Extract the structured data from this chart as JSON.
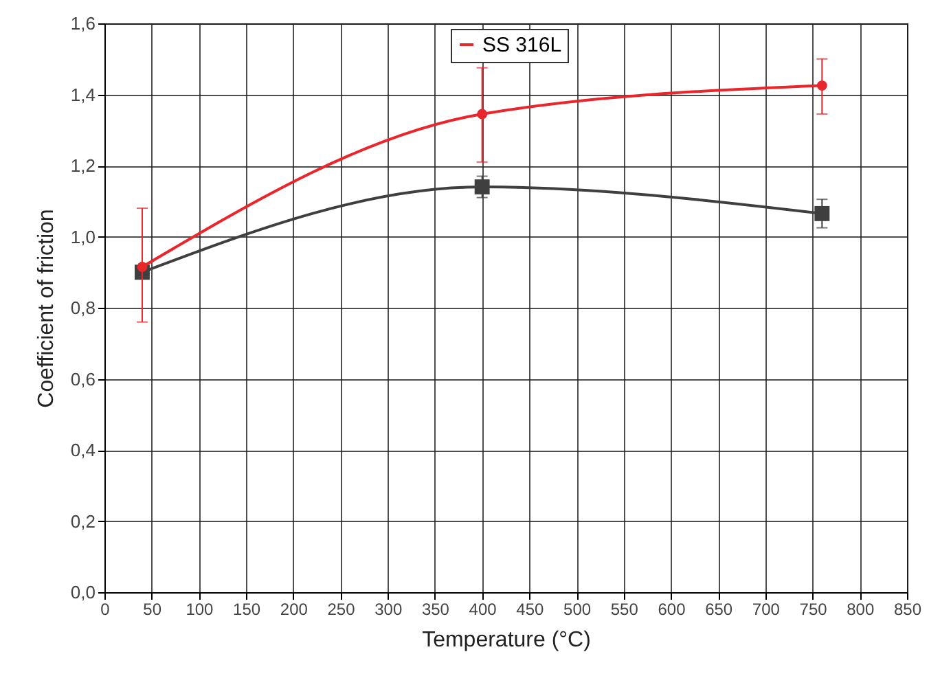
{
  "chart_data": {
    "type": "line",
    "xlabel": "Temperature (°C)",
    "ylabel": "Coefficient of friction",
    "x": [
      40,
      400,
      760
    ],
    "series": [
      {
        "color": "#3f3f3f",
        "marker": "square",
        "values": [
          0.9,
          1.14,
          1.065
        ],
        "errors": [
          null,
          0.03,
          0.04
        ]
      },
      {
        "name": "SS 316L",
        "color": "#e8262b",
        "marker": "circle",
        "values": [
          0.915,
          1.345,
          1.425
        ],
        "errors": [
          [
            0.76,
            1.08
          ],
          [
            1.21,
            1.475
          ],
          [
            1.345,
            1.5
          ]
        ]
      }
    ],
    "xlim": [
      0,
      850
    ],
    "xticks": [
      0,
      50,
      100,
      150,
      200,
      250,
      300,
      350,
      400,
      450,
      500,
      550,
      600,
      650,
      700,
      750,
      800,
      850
    ],
    "ylim": [
      0,
      1.6
    ],
    "yticks": [
      {
        "value": 0,
        "label": "0,0"
      },
      {
        "value": 0.2,
        "label": "0,2"
      },
      {
        "value": 0.4,
        "label": "0,4"
      },
      {
        "value": 0.6,
        "label": "0,6"
      },
      {
        "value": 0.8,
        "label": "0,8"
      },
      {
        "value": 1.0,
        "label": "1,0"
      },
      {
        "value": 1.2,
        "label": "1,2"
      },
      {
        "value": 1.4,
        "label": "1,4"
      },
      {
        "value": 1.6,
        "label": "1,6"
      }
    ],
    "grid": true,
    "legend": "top",
    "line_style": "solid"
  }
}
